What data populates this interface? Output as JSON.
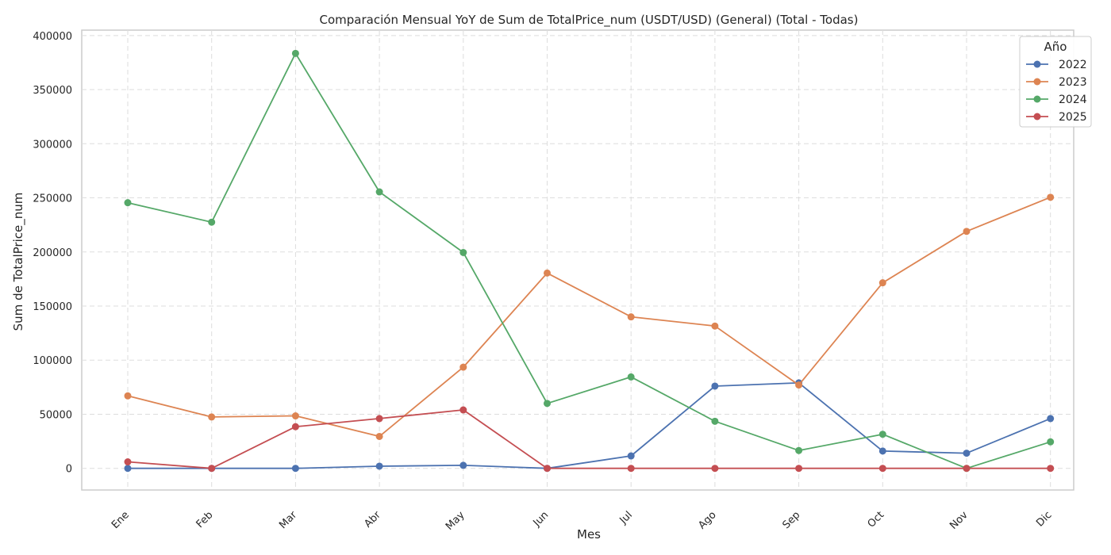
{
  "chart_data": {
    "type": "line",
    "title": "Comparación Mensual YoY de Sum de TotalPrice_num (USDT/USD) (General) (Total - Todas)",
    "xlabel": "Mes",
    "ylabel": "Sum de TotalPrice_num",
    "categories": [
      "Ene",
      "Feb",
      "Mar",
      "Abr",
      "May",
      "Jun",
      "Jul",
      "Ago",
      "Sep",
      "Oct",
      "Nov",
      "Dic"
    ],
    "ylim": [
      -20000,
      405000
    ],
    "yticks": [
      0,
      50000,
      100000,
      150000,
      200000,
      250000,
      300000,
      350000,
      400000
    ],
    "grid": true,
    "legend": {
      "title": "Año",
      "placement": "top-right"
    },
    "series": [
      {
        "name": "2022",
        "color": "#4c72b0",
        "values": [
          0,
          0,
          0,
          2000,
          2800,
          0,
          11500,
          76000,
          79000,
          16000,
          14000,
          46000
        ]
      },
      {
        "name": "2023",
        "color": "#dd8452",
        "values": [
          67000,
          47500,
          48500,
          29500,
          93500,
          180500,
          140000,
          131500,
          77000,
          171500,
          219000,
          250500
        ]
      },
      {
        "name": "2024",
        "color": "#55a868",
        "values": [
          245500,
          227500,
          383500,
          255500,
          199500,
          60000,
          84500,
          43500,
          16500,
          31500,
          0,
          24500
        ]
      },
      {
        "name": "2025",
        "color": "#c44e52",
        "values": [
          6000,
          0,
          38500,
          46000,
          54000,
          0,
          0,
          0,
          0,
          0,
          0,
          0
        ]
      }
    ]
  }
}
